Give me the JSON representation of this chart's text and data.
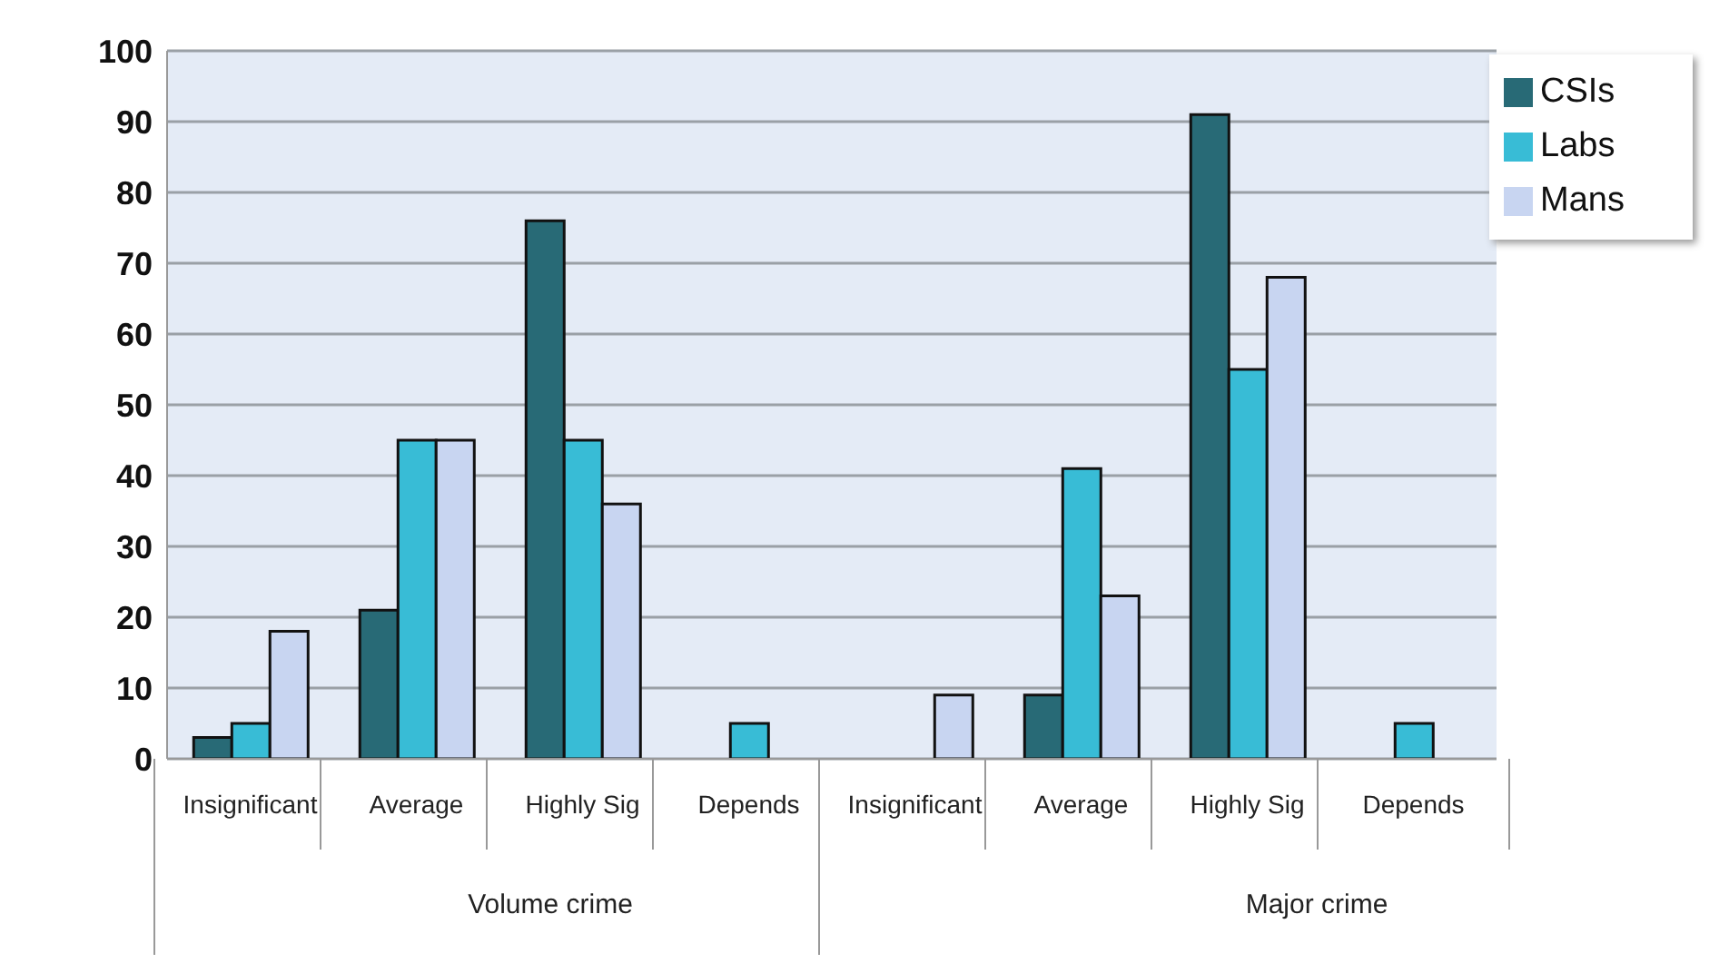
{
  "chart_data": {
    "type": "bar",
    "categories": [
      "Insignificant",
      "Average",
      "Highly Sig",
      "Depends",
      "Insignificant",
      "Average",
      "Highly Sig",
      "Depends"
    ],
    "series": [
      {
        "name": "CSIs",
        "color": "#286a76",
        "values": [
          3,
          21,
          76,
          null,
          null,
          9,
          91,
          null
        ]
      },
      {
        "name": "Labs",
        "color": "#38bcd6",
        "values": [
          5,
          45,
          45,
          5,
          null,
          41,
          55,
          5
        ]
      },
      {
        "name": "Mans",
        "color": "#c8d5f1",
        "values": [
          18,
          45,
          36,
          null,
          9,
          23,
          68,
          null
        ]
      }
    ],
    "annotations": [
      "Volume crime",
      "Major crime"
    ],
    "ylim": [
      0,
      100
    ],
    "yticks": [
      0,
      10,
      20,
      30,
      40,
      50,
      60,
      70,
      80,
      90,
      100
    ],
    "grid": "y",
    "legend": "top right"
  }
}
